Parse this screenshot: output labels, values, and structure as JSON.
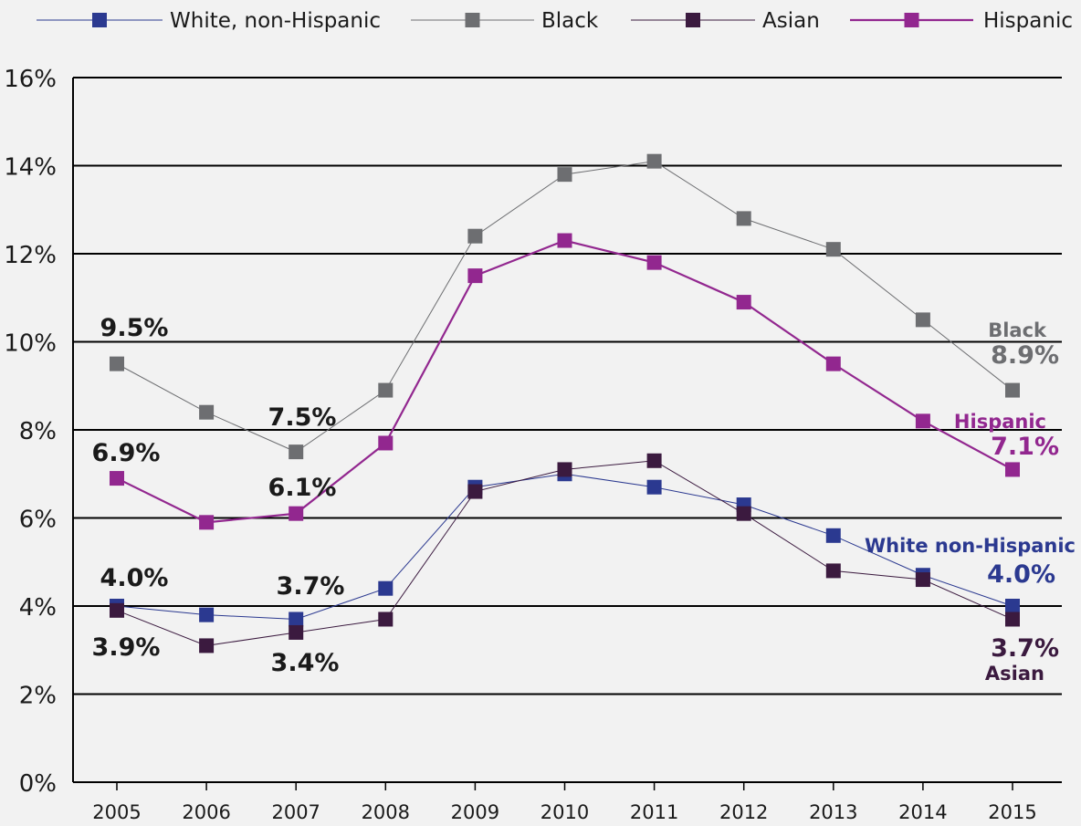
{
  "chart_data": {
    "type": "line",
    "title": "",
    "xlabel": "",
    "ylabel": "",
    "x": [
      "2005",
      "2006",
      "2007",
      "2008",
      "2009",
      "2010",
      "2011",
      "2012",
      "2013",
      "2014",
      "2015"
    ],
    "ylim": [
      0,
      16
    ],
    "yticks": [
      "0%",
      "2%",
      "4%",
      "6%",
      "8%",
      "10%",
      "12%",
      "14%",
      "16%"
    ],
    "grid": "horizontal",
    "legend_position": "top",
    "series": [
      {
        "name": "White, non-Hispanic",
        "color": "#2b3990",
        "line_width": 1,
        "values": [
          4.0,
          3.8,
          3.7,
          4.4,
          6.7,
          7.0,
          6.7,
          6.3,
          5.6,
          4.7,
          4.0
        ]
      },
      {
        "name": "Black",
        "color": "#6d6e71",
        "line_width": 1,
        "values": [
          9.5,
          8.4,
          7.5,
          8.9,
          12.4,
          13.8,
          14.1,
          12.8,
          12.1,
          10.5,
          8.9
        ]
      },
      {
        "name": "Asian",
        "color": "#3b1a3f",
        "line_width": 1,
        "values": [
          3.9,
          3.1,
          3.4,
          3.7,
          6.6,
          7.1,
          7.3,
          6.1,
          4.8,
          4.6,
          3.7
        ]
      },
      {
        "name": "Hispanic",
        "color": "#92278f",
        "line_width": 2.2,
        "values": [
          6.9,
          5.9,
          6.1,
          7.7,
          11.5,
          12.3,
          11.8,
          10.9,
          9.5,
          8.2,
          7.1
        ]
      }
    ],
    "annotations": {
      "black_2005": "9.5%",
      "black_2007": "7.5%",
      "hispanic_2005": "6.9%",
      "hispanic_2007": "6.1%",
      "white_2005": "4.0%",
      "white_2007": "3.7%",
      "asian_2005": "3.9%",
      "asian_2007": "3.4%",
      "black_end_name": "Black",
      "black_end_value": "8.9%",
      "hispanic_end_name": "Hispanic",
      "hispanic_end_value": "7.1%",
      "white_end_name": "White non-Hispanic",
      "white_end_value": "4.0%",
      "asian_end_value": "3.7%",
      "asian_end_name": "Asian"
    },
    "annotation_colors": {
      "dark": "#1a1a1a",
      "black": "#6d6e71",
      "hispanic": "#92278f",
      "white": "#2b3990",
      "asian": "#3b1a3f"
    }
  }
}
